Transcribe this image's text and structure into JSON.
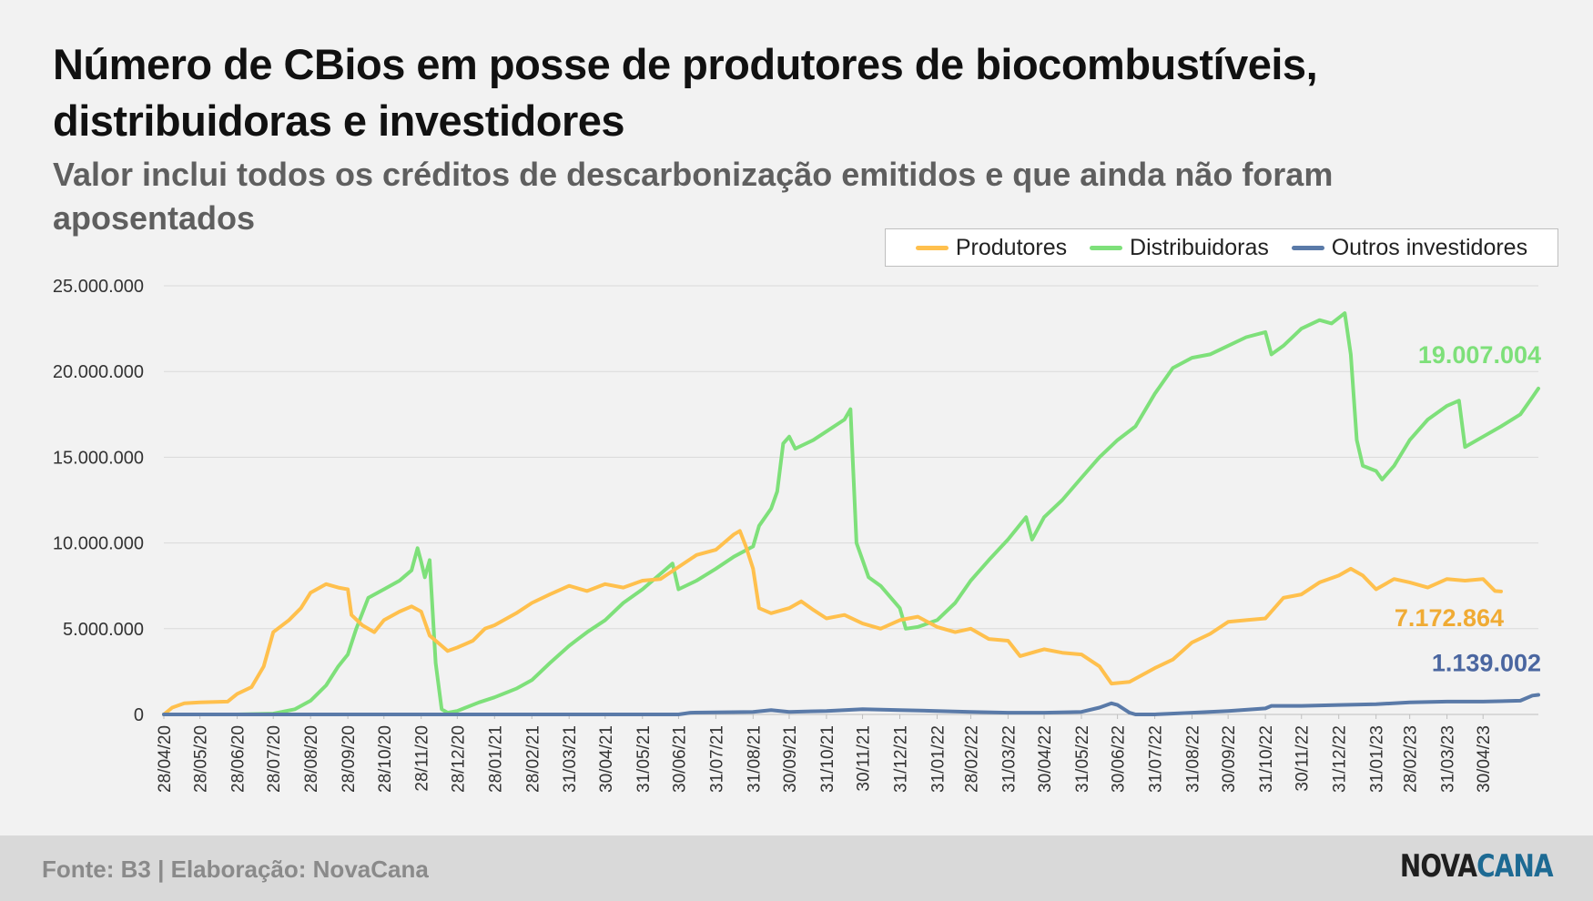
{
  "title": "Número de CBios em posse de produtores de biocombustíveis, distribuidoras e investidores",
  "subtitle": "Valor inclui todos os créditos de descarbonização emitidos e que ainda não foram aposentados",
  "source": "Fonte: B3 | Elaboração: NovaCana",
  "brand": {
    "part1": "NOVA",
    "part2": "CANA"
  },
  "colors": {
    "produtores": "#ffc04d",
    "distribuidoras": "#7ee07a",
    "outros": "#5a7aa8",
    "grid": "#d9d9d9"
  },
  "chart_data": {
    "type": "line",
    "title": "Número de CBios em posse de produtores de biocombustíveis, distribuidoras e investidores",
    "xlabel": "",
    "ylabel": "",
    "ylim": [
      0,
      25000000
    ],
    "yticks": [
      "25.000.000",
      "20.000.000",
      "15.000.000",
      "10.000.000",
      "5.000.000",
      "0"
    ],
    "ytick_values": [
      25000000,
      20000000,
      15000000,
      10000000,
      5000000,
      0
    ],
    "xticks": [
      "28/04/20",
      "28/05/20",
      "28/06/20",
      "28/07/20",
      "28/08/20",
      "28/09/20",
      "28/10/20",
      "28/11/20",
      "28/12/20",
      "28/01/21",
      "28/02/21",
      "31/03/21",
      "30/04/21",
      "31/05/21",
      "30/06/21",
      "31/07/21",
      "31/08/21",
      "30/09/21",
      "31/10/21",
      "30/11/21",
      "31/12/21",
      "31/01/22",
      "28/02/22",
      "31/03/22",
      "30/04/22",
      "31/05/22",
      "30/06/22",
      "31/07/22",
      "31/08/22",
      "30/09/22",
      "31/10/22",
      "30/11/22",
      "31/12/22",
      "31/01/23",
      "28/02/23",
      "31/03/23",
      "30/04/23"
    ],
    "grid": true,
    "legend_position": "top-right",
    "series": [
      {
        "name": "Produtores",
        "color": "#ffc04d",
        "end_label": "7.172.864",
        "points": [
          [
            "28/04/20",
            0
          ],
          [
            "05/05/20",
            400000
          ],
          [
            "15/05/20",
            650000
          ],
          [
            "28/05/20",
            700000
          ],
          [
            "20/06/20",
            750000
          ],
          [
            "28/06/20",
            1200000
          ],
          [
            "10/07/20",
            1600000
          ],
          [
            "20/07/20",
            2800000
          ],
          [
            "28/07/20",
            4800000
          ],
          [
            "10/08/20",
            5500000
          ],
          [
            "20/08/20",
            6200000
          ],
          [
            "28/08/20",
            7100000
          ],
          [
            "10/09/20",
            7600000
          ],
          [
            "20/09/20",
            7400000
          ],
          [
            "28/09/20",
            7300000
          ],
          [
            "01/10/20",
            5800000
          ],
          [
            "10/10/20",
            5200000
          ],
          [
            "20/10/20",
            4800000
          ],
          [
            "28/10/20",
            5500000
          ],
          [
            "10/11/20",
            6000000
          ],
          [
            "20/11/20",
            6300000
          ],
          [
            "28/11/20",
            6000000
          ],
          [
            "05/12/20",
            4600000
          ],
          [
            "15/12/20",
            4000000
          ],
          [
            "20/12/20",
            3700000
          ],
          [
            "28/12/20",
            3900000
          ],
          [
            "10/01/21",
            4300000
          ],
          [
            "20/01/21",
            5000000
          ],
          [
            "28/01/21",
            5200000
          ],
          [
            "15/02/21",
            5900000
          ],
          [
            "28/02/21",
            6500000
          ],
          [
            "15/03/21",
            7000000
          ],
          [
            "31/03/21",
            7500000
          ],
          [
            "15/04/21",
            7200000
          ],
          [
            "30/04/21",
            7600000
          ],
          [
            "15/05/21",
            7400000
          ],
          [
            "31/05/21",
            7800000
          ],
          [
            "15/06/21",
            7900000
          ],
          [
            "30/06/21",
            8600000
          ],
          [
            "15/07/21",
            9300000
          ],
          [
            "31/07/21",
            9600000
          ],
          [
            "15/08/21",
            10500000
          ],
          [
            "20/08/21",
            10700000
          ],
          [
            "25/08/21",
            9800000
          ],
          [
            "31/08/21",
            8500000
          ],
          [
            "05/09/21",
            6200000
          ],
          [
            "15/09/21",
            5900000
          ],
          [
            "30/09/21",
            6200000
          ],
          [
            "10/10/21",
            6600000
          ],
          [
            "20/10/21",
            6100000
          ],
          [
            "31/10/21",
            5600000
          ],
          [
            "15/11/21",
            5800000
          ],
          [
            "30/11/21",
            5300000
          ],
          [
            "15/12/21",
            5000000
          ],
          [
            "31/12/21",
            5500000
          ],
          [
            "15/01/22",
            5700000
          ],
          [
            "31/01/22",
            5100000
          ],
          [
            "15/02/22",
            4800000
          ],
          [
            "28/02/22",
            5000000
          ],
          [
            "15/03/22",
            4400000
          ],
          [
            "31/03/22",
            4300000
          ],
          [
            "10/04/22",
            3400000
          ],
          [
            "30/04/22",
            3800000
          ],
          [
            "15/05/22",
            3600000
          ],
          [
            "31/05/22",
            3500000
          ],
          [
            "15/06/22",
            2800000
          ],
          [
            "25/06/22",
            1800000
          ],
          [
            "10/07/22",
            1900000
          ],
          [
            "31/07/22",
            2700000
          ],
          [
            "15/08/22",
            3200000
          ],
          [
            "31/08/22",
            4200000
          ],
          [
            "15/09/22",
            4700000
          ],
          [
            "30/09/22",
            5400000
          ],
          [
            "15/10/22",
            5500000
          ],
          [
            "31/10/22",
            5600000
          ],
          [
            "15/11/22",
            6800000
          ],
          [
            "30/11/22",
            7000000
          ],
          [
            "15/12/22",
            7700000
          ],
          [
            "31/12/22",
            8100000
          ],
          [
            "10/01/23",
            8500000
          ],
          [
            "20/01/23",
            8100000
          ],
          [
            "31/01/23",
            7300000
          ],
          [
            "15/02/23",
            7900000
          ],
          [
            "28/02/23",
            7700000
          ],
          [
            "15/03/23",
            7400000
          ],
          [
            "31/03/23",
            7900000
          ],
          [
            "15/04/23",
            7800000
          ],
          [
            "30/04/23",
            7900000
          ],
          [
            "10/05/23",
            7200000
          ],
          [
            "15/05/23",
            7172864
          ]
        ]
      },
      {
        "name": "Distribuidoras",
        "color": "#7ee07a",
        "end_label": "19.007.004",
        "points": [
          [
            "28/04/20",
            0
          ],
          [
            "28/06/20",
            0
          ],
          [
            "28/07/20",
            50000
          ],
          [
            "15/08/20",
            300000
          ],
          [
            "28/08/20",
            800000
          ],
          [
            "10/09/20",
            1700000
          ],
          [
            "20/09/20",
            2800000
          ],
          [
            "28/09/20",
            3500000
          ],
          [
            "05/10/20",
            5000000
          ],
          [
            "15/10/20",
            6800000
          ],
          [
            "28/10/20",
            7300000
          ],
          [
            "10/11/20",
            7800000
          ],
          [
            "20/11/20",
            8400000
          ],
          [
            "25/11/20",
            9700000
          ],
          [
            "28/11/20",
            8900000
          ],
          [
            "01/12/20",
            8000000
          ],
          [
            "05/12/20",
            9000000
          ],
          [
            "10/12/20",
            3000000
          ],
          [
            "15/12/20",
            300000
          ],
          [
            "20/12/20",
            100000
          ],
          [
            "28/12/20",
            200000
          ],
          [
            "15/01/21",
            700000
          ],
          [
            "28/01/21",
            1000000
          ],
          [
            "15/02/21",
            1500000
          ],
          [
            "28/02/21",
            2000000
          ],
          [
            "15/03/21",
            3000000
          ],
          [
            "31/03/21",
            4000000
          ],
          [
            "15/04/21",
            4800000
          ],
          [
            "30/04/21",
            5500000
          ],
          [
            "15/05/21",
            6500000
          ],
          [
            "31/05/21",
            7300000
          ],
          [
            "15/06/21",
            8200000
          ],
          [
            "25/06/21",
            8800000
          ],
          [
            "30/06/21",
            7300000
          ],
          [
            "15/07/21",
            7800000
          ],
          [
            "31/07/21",
            8500000
          ],
          [
            "15/08/21",
            9200000
          ],
          [
            "31/08/21",
            9800000
          ],
          [
            "05/09/21",
            11000000
          ],
          [
            "15/09/21",
            12000000
          ],
          [
            "20/09/21",
            13000000
          ],
          [
            "25/09/21",
            15800000
          ],
          [
            "30/09/21",
            16200000
          ],
          [
            "05/10/21",
            15500000
          ],
          [
            "20/10/21",
            16000000
          ],
          [
            "31/10/21",
            16500000
          ],
          [
            "15/11/21",
            17200000
          ],
          [
            "20/11/21",
            17800000
          ],
          [
            "25/11/21",
            10000000
          ],
          [
            "30/11/21",
            9000000
          ],
          [
            "05/12/21",
            8000000
          ],
          [
            "15/12/21",
            7500000
          ],
          [
            "31/12/21",
            6200000
          ],
          [
            "05/01/22",
            5000000
          ],
          [
            "15/01/22",
            5100000
          ],
          [
            "31/01/22",
            5500000
          ],
          [
            "15/02/22",
            6500000
          ],
          [
            "28/02/22",
            7800000
          ],
          [
            "15/03/22",
            9000000
          ],
          [
            "31/03/22",
            10200000
          ],
          [
            "15/04/22",
            11500000
          ],
          [
            "20/04/22",
            10200000
          ],
          [
            "30/04/22",
            11500000
          ],
          [
            "15/05/22",
            12500000
          ],
          [
            "31/05/22",
            13800000
          ],
          [
            "15/06/22",
            15000000
          ],
          [
            "30/06/22",
            16000000
          ],
          [
            "15/07/22",
            16800000
          ],
          [
            "31/07/22",
            18700000
          ],
          [
            "15/08/22",
            20200000
          ],
          [
            "31/08/22",
            20800000
          ],
          [
            "15/09/22",
            21000000
          ],
          [
            "30/09/22",
            21500000
          ],
          [
            "15/10/22",
            22000000
          ],
          [
            "31/10/22",
            22300000
          ],
          [
            "05/11/22",
            21000000
          ],
          [
            "15/11/22",
            21500000
          ],
          [
            "30/11/22",
            22500000
          ],
          [
            "15/12/22",
            23000000
          ],
          [
            "25/12/22",
            22800000
          ],
          [
            "05/01/23",
            23400000
          ],
          [
            "10/01/23",
            21000000
          ],
          [
            "15/01/23",
            16000000
          ],
          [
            "20/01/23",
            14500000
          ],
          [
            "31/01/23",
            14200000
          ],
          [
            "05/02/23",
            13700000
          ],
          [
            "15/02/23",
            14500000
          ],
          [
            "28/02/23",
            16000000
          ],
          [
            "15/03/23",
            17200000
          ],
          [
            "31/03/23",
            18000000
          ],
          [
            "10/04/23",
            18300000
          ],
          [
            "15/04/23",
            15600000
          ],
          [
            "30/04/23",
            16200000
          ],
          [
            "15/05/23",
            16800000
          ],
          [
            "31/05/23",
            17500000
          ],
          [
            "10/06/23",
            18500000
          ],
          [
            "15/06/23",
            19007004
          ]
        ]
      },
      {
        "name": "Outros investidores",
        "color": "#5a7aa8",
        "end_label": "1.139.002",
        "points": [
          [
            "28/04/20",
            0
          ],
          [
            "30/06/21",
            0
          ],
          [
            "10/07/21",
            100000
          ],
          [
            "31/08/21",
            150000
          ],
          [
            "15/09/21",
            250000
          ],
          [
            "30/09/21",
            150000
          ],
          [
            "31/10/21",
            200000
          ],
          [
            "30/11/21",
            300000
          ],
          [
            "31/12/21",
            250000
          ],
          [
            "31/01/22",
            200000
          ],
          [
            "28/02/22",
            150000
          ],
          [
            "31/03/22",
            100000
          ],
          [
            "30/04/22",
            100000
          ],
          [
            "31/05/22",
            150000
          ],
          [
            "15/06/22",
            400000
          ],
          [
            "25/06/22",
            650000
          ],
          [
            "30/06/22",
            550000
          ],
          [
            "10/07/22",
            100000
          ],
          [
            "15/07/22",
            0
          ],
          [
            "31/07/22",
            0
          ],
          [
            "31/08/22",
            100000
          ],
          [
            "30/09/22",
            200000
          ],
          [
            "31/10/22",
            350000
          ],
          [
            "05/11/22",
            500000
          ],
          [
            "30/11/22",
            500000
          ],
          [
            "31/12/22",
            550000
          ],
          [
            "31/01/23",
            600000
          ],
          [
            "28/02/23",
            700000
          ],
          [
            "31/03/23",
            750000
          ],
          [
            "30/04/23",
            750000
          ],
          [
            "31/05/23",
            800000
          ],
          [
            "10/06/23",
            1100000
          ],
          [
            "15/06/23",
            1139002
          ]
        ]
      }
    ]
  }
}
